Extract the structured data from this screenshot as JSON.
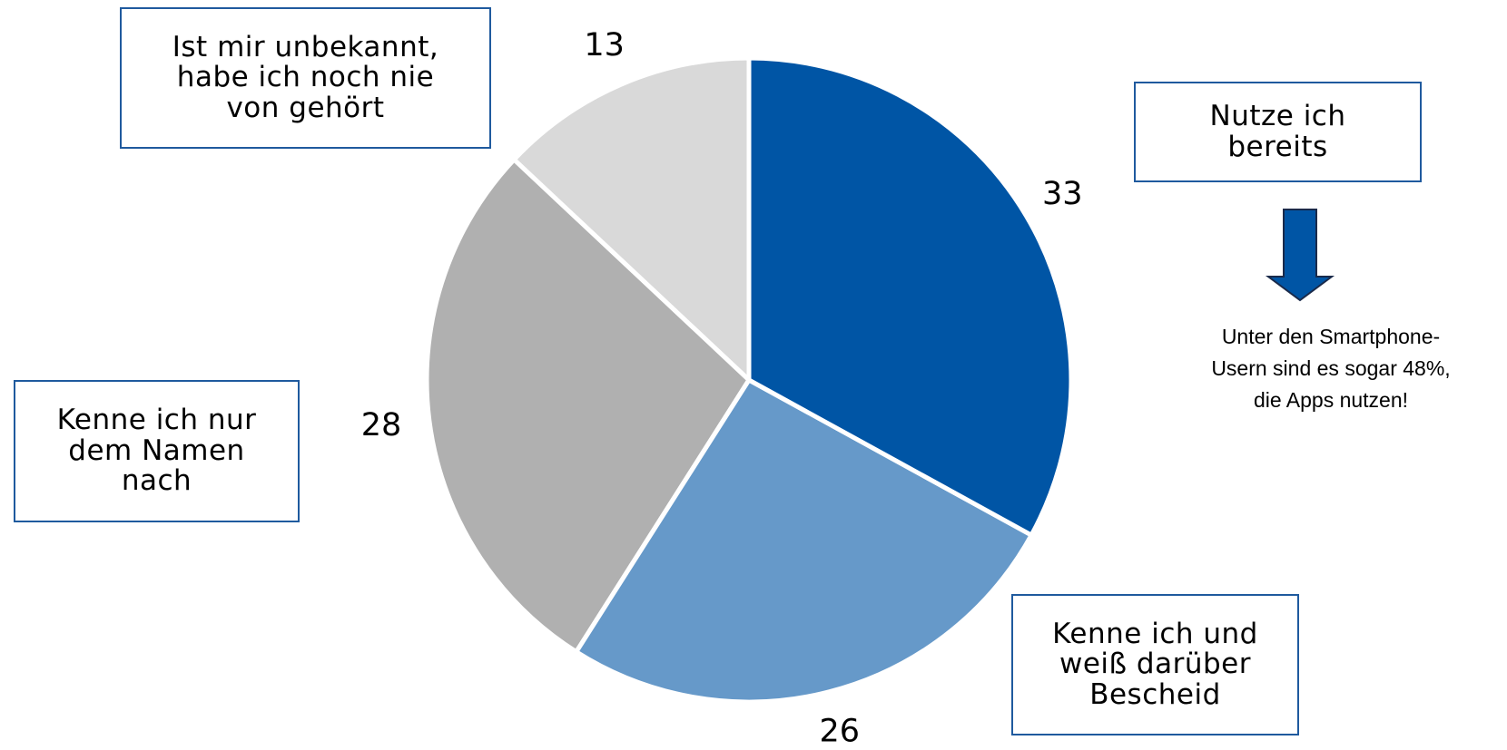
{
  "chart_data": {
    "type": "pie",
    "categories": [
      "Nutze ich\nbereits",
      "Kenne ich und\nweiß darüber\nBescheid",
      "Kenne ich nur\ndem Namen\nnach",
      "Ist mir unbekannt,\nhabe ich noch nie\nvon gehört"
    ],
    "values": [
      33,
      26,
      28,
      13
    ],
    "colors": [
      "#0055a5",
      "#6699c9",
      "#b0b0b0",
      "#d9d9d9"
    ],
    "annotation": "Unter den Smartphone-\nUsern sind es sogar 48%,\ndie Apps nutzen!"
  }
}
